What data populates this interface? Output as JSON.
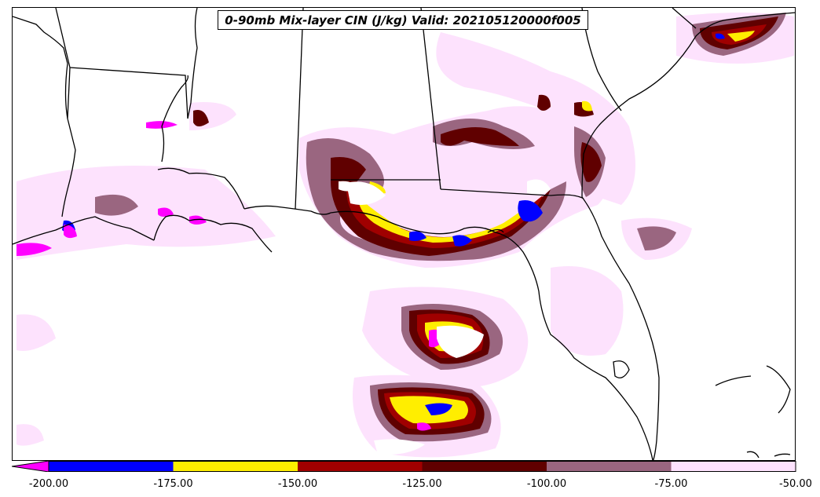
{
  "title": "0-90mb Mix-layer CIN (J/kg) Valid: 202105120000f005",
  "legend": {
    "bins": [
      {
        "range": [
          -200,
          -175
        ],
        "color": "#0000ff"
      },
      {
        "range": [
          -175,
          -150
        ],
        "color": "#ffee00"
      },
      {
        "range": [
          -150,
          -125
        ],
        "color": "#a00000"
      },
      {
        "range": [
          -125,
          -100
        ],
        "color": "#600000"
      },
      {
        "range": [
          -100,
          -75
        ],
        "color": "#9a6680"
      },
      {
        "range": [
          -75,
          -50
        ],
        "color": "#fde2fd"
      }
    ],
    "extend_below_color": "#ff00ff",
    "tick_labels": [
      "-200.00",
      "-175.00",
      "-150.00",
      "-125.00",
      "-100.00",
      "-75.00",
      "-50.00"
    ]
  },
  "map": {
    "region": "US Gulf Coast / Southeast",
    "background_color": "#ffffff",
    "border_color": "#000000"
  }
}
